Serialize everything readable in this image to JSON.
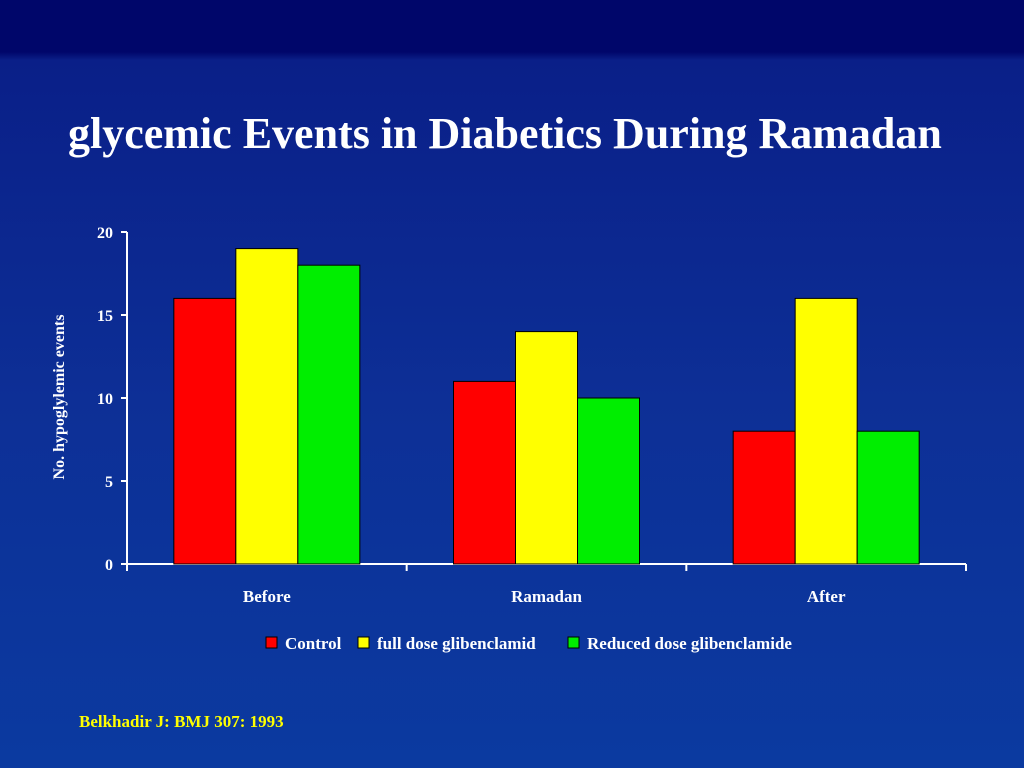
{
  "slide": {
    "title": "glycemic Events in Diabetics During Ramadan",
    "citation": "Belkhadir J: BMJ 307: 1993"
  },
  "chart_data": {
    "type": "bar",
    "categories": [
      "Before",
      "Ramadan",
      "After"
    ],
    "series": [
      {
        "name": "Control",
        "values": [
          16,
          11,
          8
        ],
        "color": "#ff0000"
      },
      {
        "name": "full dose glibenclamid",
        "values": [
          19,
          14,
          16
        ],
        "color": "#ffff00"
      },
      {
        "name": "Reduced dose glibenclamide",
        "values": [
          18,
          10,
          8
        ],
        "color": "#00ee00"
      }
    ],
    "ylabel": "No. hypoglylemic events",
    "xlabel": "",
    "ylim": [
      0,
      20
    ],
    "yticks": [
      0,
      5,
      10,
      15,
      20
    ],
    "grid": false,
    "legend_position": "bottom-center"
  }
}
